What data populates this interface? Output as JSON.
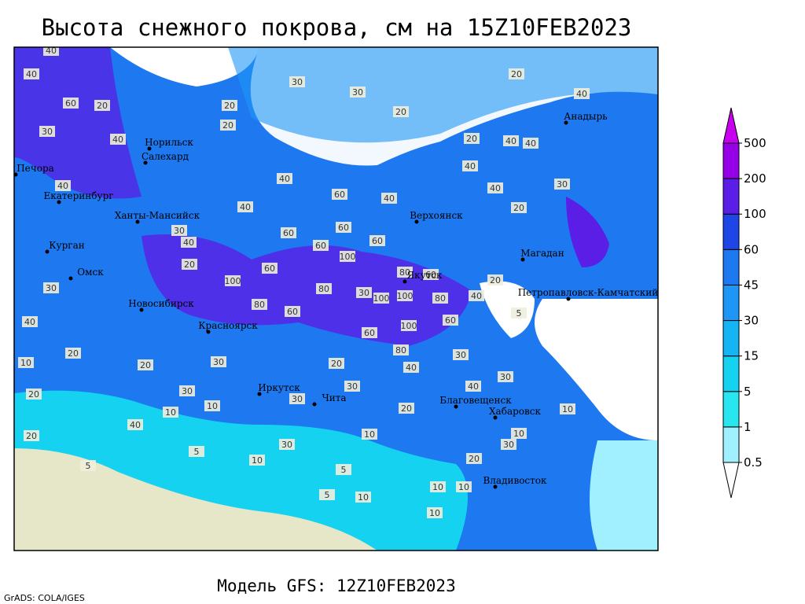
{
  "title": "Высота снежного покрова, см на 15Z10FEB2023",
  "subtitle": "Модель GFS: 12Z10FEB2023",
  "credit": "GrADS: COLA/IGES",
  "cities": [
    "Норильск",
    "Салехард",
    "Печора",
    "Екатеринбург",
    "Ханты-Мансийск",
    "Курган",
    "Омск",
    "Новосибирск",
    "Красноярск",
    "Иркутск",
    "Чита",
    "Верхоянск",
    "Якутск",
    "Магадан",
    "Анадырь",
    "Петропавловск-Камчатский",
    "Благовещенск",
    "Хабаровск",
    "Владивосток"
  ],
  "contour_labels": [
    40,
    40,
    20,
    40,
    30,
    30,
    30,
    20,
    20,
    20,
    20,
    20,
    40,
    40,
    40,
    40,
    40,
    30,
    20,
    40,
    60,
    40,
    40,
    60,
    60,
    60,
    60,
    100,
    60,
    100,
    80,
    60,
    80,
    30,
    100,
    100,
    80,
    80,
    60,
    100,
    60,
    60,
    80,
    40,
    20,
    30,
    40,
    20,
    10,
    20,
    30,
    20,
    40,
    30,
    30,
    40,
    30,
    30,
    30,
    20,
    10,
    10,
    20,
    20,
    40,
    30,
    10,
    10,
    5,
    20,
    5,
    10,
    10,
    10,
    5,
    10,
    5,
    10,
    10,
    30,
    5,
    20,
    40,
    30,
    40,
    60
  ],
  "legend": {
    "levels": [
      0.5,
      1,
      5,
      15,
      30,
      45,
      60,
      100,
      200,
      500
    ],
    "colors": [
      "#ffffff",
      "#a0f0ff",
      "#28e6f0",
      "#14d2f0",
      "#14b4f5",
      "#1e96f5",
      "#1e78f0",
      "#1e46e6",
      "#5a1ee6",
      "#9600e6",
      "#c800f0"
    ]
  }
}
